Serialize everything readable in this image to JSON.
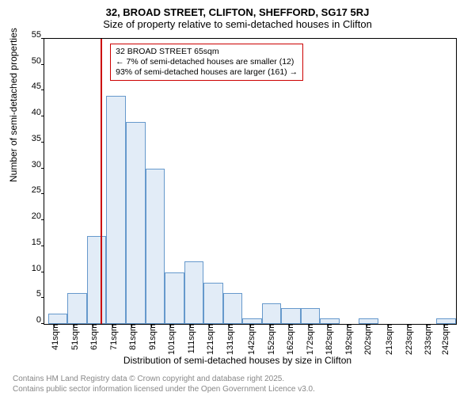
{
  "titles": {
    "main": "32, BROAD STREET, CLIFTON, SHEFFORD, SG17 5RJ",
    "sub": "Size of property relative to semi-detached houses in Clifton"
  },
  "axes": {
    "ylabel": "Number of semi-detached properties",
    "xlabel": "Distribution of semi-detached houses by size in Clifton",
    "ylim": [
      0,
      55
    ],
    "yticks": [
      0,
      5,
      10,
      15,
      20,
      25,
      30,
      35,
      40,
      45,
      50,
      55
    ],
    "xlim": [
      36,
      248
    ],
    "xticks": [
      41,
      51,
      61,
      71,
      81,
      91,
      101,
      111,
      121,
      131,
      142,
      152,
      162,
      172,
      182,
      192,
      202,
      213,
      223,
      233,
      242
    ],
    "xtick_suffix": "sqm"
  },
  "histogram": {
    "type": "histogram",
    "bin_width": 10,
    "bar_fill": "#e2ecf7",
    "bar_stroke": "#6699cc",
    "bins": [
      {
        "x": 38,
        "count": 2
      },
      {
        "x": 48,
        "count": 6
      },
      {
        "x": 58,
        "count": 17
      },
      {
        "x": 68,
        "count": 44
      },
      {
        "x": 78,
        "count": 39
      },
      {
        "x": 88,
        "count": 30
      },
      {
        "x": 98,
        "count": 10
      },
      {
        "x": 108,
        "count": 12
      },
      {
        "x": 118,
        "count": 8
      },
      {
        "x": 128,
        "count": 6
      },
      {
        "x": 138,
        "count": 1
      },
      {
        "x": 148,
        "count": 4
      },
      {
        "x": 158,
        "count": 3
      },
      {
        "x": 168,
        "count": 3
      },
      {
        "x": 178,
        "count": 1
      },
      {
        "x": 188,
        "count": 0
      },
      {
        "x": 198,
        "count": 1
      },
      {
        "x": 208,
        "count": 0
      },
      {
        "x": 218,
        "count": 0
      },
      {
        "x": 228,
        "count": 0
      },
      {
        "x": 238,
        "count": 1
      }
    ]
  },
  "marker": {
    "x": 65,
    "color": "#cc0000"
  },
  "annotation": {
    "line1": "32 BROAD STREET 65sqm",
    "line2": "← 7% of semi-detached houses are smaller (12)",
    "line3": "93% of semi-detached houses are larger (161) →",
    "border_color": "#cc0000"
  },
  "footer": {
    "line1": "Contains HM Land Registry data © Crown copyright and database right 2025.",
    "line2": "Contains public sector information licensed under the Open Government Licence v3.0."
  },
  "style": {
    "background": "#ffffff",
    "font_family": "Arial, sans-serif",
    "title_fontsize": 13,
    "axis_label_fontsize": 12,
    "tick_fontsize": 11,
    "annotation_fontsize": 10.5,
    "footer_fontsize": 10,
    "footer_color": "#888888"
  }
}
